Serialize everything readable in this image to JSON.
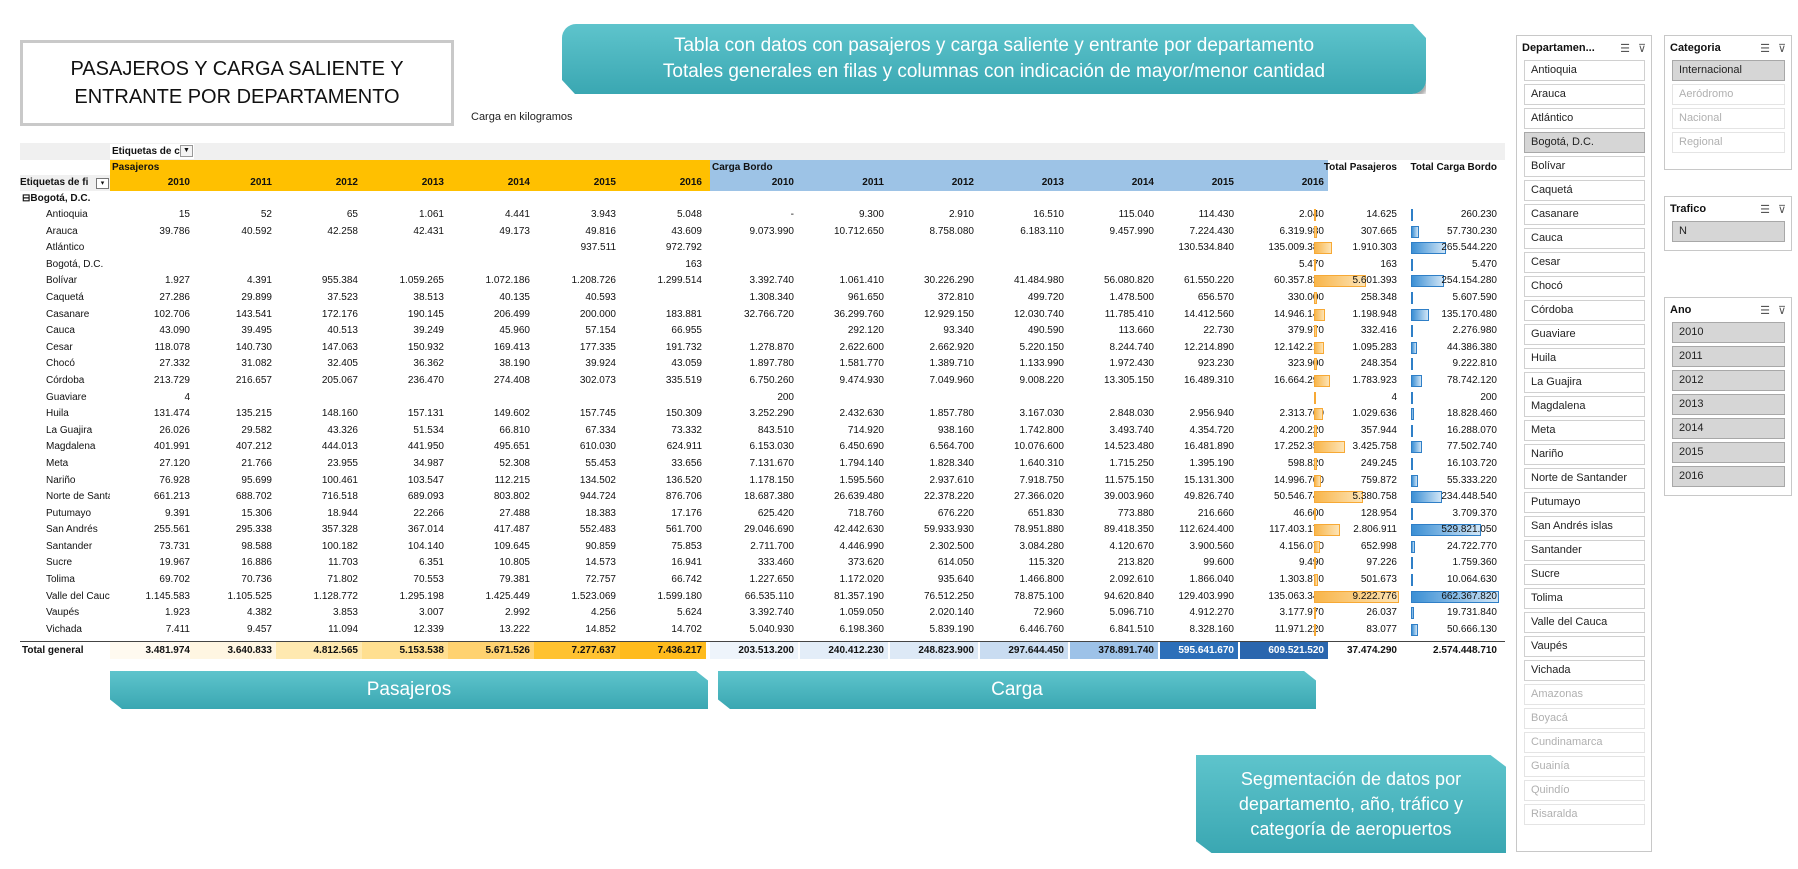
{
  "title": "PASAJEROS Y CARGA SALIENTE Y ENTRANTE POR DEPARTAMENTO",
  "subtitle": "Carga en kilogramos",
  "banners": {
    "top_line1": "Tabla con datos con pasajeros y carga saliente y entrante por departamento",
    "top_line2": "Totales generales en filas y columnas con indicación de mayor/menor cantidad",
    "pasajeros": "Pasajeros",
    "carga": "Carga",
    "segmentacion": "Segmentación de datos por departamento, año, tráfico y categoría de aeropuertos"
  },
  "pivot": {
    "col_labels_caption": "Etiquetas de c",
    "row_labels_caption": "Etiquetas de fi",
    "group_pasajeros": "Pasajeros",
    "group_carga": "Carga Bordo",
    "total_pasajeros_header": "Total Pasajeros",
    "total_carga_header": "Total Carga Bordo",
    "years": [
      "2010",
      "2011",
      "2012",
      "2013",
      "2014",
      "2015",
      "2016"
    ],
    "origin_group": "Bogotá, D.C.",
    "rows": [
      {
        "name": "Antioquia",
        "p": [
          "15",
          "52",
          "65",
          "1.061",
          "4.441",
          "3.943",
          "5.048"
        ],
        "c": [
          "-",
          "9.300",
          "2.910",
          "16.510",
          "115.040",
          "114.430",
          "2.040"
        ],
        "tp": "14.625",
        "tc": "260.230",
        "tp_frac": 0,
        "tc_frac": 0
      },
      {
        "name": "Arauca",
        "p": [
          "39.786",
          "40.592",
          "42.258",
          "42.431",
          "49.173",
          "49.816",
          "43.609"
        ],
        "c": [
          "9.073.990",
          "10.712.650",
          "8.758.080",
          "6.183.110",
          "9.457.990",
          "7.224.430",
          "6.319.980"
        ],
        "tp": "307.665",
        "tc": "57.730.230",
        "tp_frac": 0.03,
        "tc_frac": 0.09
      },
      {
        "name": "Atlántico",
        "p": [
          "",
          "",
          "",
          "",
          "",
          "937.511",
          "972.792"
        ],
        "c": [
          "",
          "",
          "",
          "",
          "",
          "130.534.840",
          "135.009.380"
        ],
        "tp": "1.910.303",
        "tc": "265.544.220",
        "tp_frac": 0.21,
        "tc_frac": 0.4
      },
      {
        "name": "Bogotá, D.C.",
        "p": [
          "",
          "",
          "",
          "",
          "",
          "",
          "163"
        ],
        "c": [
          "",
          "",
          "",
          "",
          "",
          "",
          "5.470"
        ],
        "tp": "163",
        "tc": "5.470",
        "tp_frac": 0,
        "tc_frac": 0
      },
      {
        "name": "Bolívar",
        "p": [
          "1.927",
          "4.391",
          "955.384",
          "1.059.265",
          "1.072.186",
          "1.208.726",
          "1.299.514"
        ],
        "c": [
          "3.392.740",
          "1.061.410",
          "30.226.290",
          "41.484.980",
          "56.080.820",
          "61.550.220",
          "60.357.820"
        ],
        "tp": "5.601.393",
        "tc": "254.154.280",
        "tp_frac": 0.61,
        "tc_frac": 0.38
      },
      {
        "name": "Caquetá",
        "p": [
          "27.286",
          "29.899",
          "37.523",
          "38.513",
          "40.135",
          "40.593",
          ""
        ],
        "c": [
          "1.308.340",
          "961.650",
          "372.810",
          "499.720",
          "1.478.500",
          "656.570",
          "330.000"
        ],
        "tp": "258.348",
        "tc": "5.607.590",
        "tp_frac": 0.03,
        "tc_frac": 0.01
      },
      {
        "name": "Casanare",
        "p": [
          "102.706",
          "143.541",
          "172.176",
          "190.145",
          "206.499",
          "200.000",
          "183.881"
        ],
        "c": [
          "32.766.720",
          "36.299.760",
          "12.929.150",
          "12.030.740",
          "11.785.410",
          "14.412.560",
          "14.946.140"
        ],
        "tp": "1.198.948",
        "tc": "135.170.480",
        "tp_frac": 0.13,
        "tc_frac": 0.2
      },
      {
        "name": "Cauca",
        "p": [
          "43.090",
          "39.495",
          "40.513",
          "39.249",
          "45.960",
          "57.154",
          "66.955"
        ],
        "c": [
          "",
          "292.120",
          "93.340",
          "490.590",
          "113.660",
          "22.730",
          "379.970"
        ],
        "tp": "332.416",
        "tc": "2.276.980",
        "tp_frac": 0.04,
        "tc_frac": 0
      },
      {
        "name": "Cesar",
        "p": [
          "118.078",
          "140.730",
          "147.063",
          "150.932",
          "169.413",
          "177.335",
          "191.732"
        ],
        "c": [
          "1.278.870",
          "2.622.600",
          "2.662.920",
          "5.220.150",
          "8.244.740",
          "12.214.890",
          "12.142.210"
        ],
        "tp": "1.095.283",
        "tc": "44.386.380",
        "tp_frac": 0.12,
        "tc_frac": 0.07
      },
      {
        "name": "Chocó",
        "p": [
          "27.332",
          "31.082",
          "32.405",
          "36.362",
          "38.190",
          "39.924",
          "43.059"
        ],
        "c": [
          "1.897.780",
          "1.581.770",
          "1.389.710",
          "1.133.990",
          "1.972.430",
          "923.230",
          "323.900"
        ],
        "tp": "248.354",
        "tc": "9.222.810",
        "tp_frac": 0.03,
        "tc_frac": 0.01
      },
      {
        "name": "Córdoba",
        "p": [
          "213.729",
          "216.657",
          "205.067",
          "236.470",
          "274.408",
          "302.073",
          "335.519"
        ],
        "c": [
          "6.750.260",
          "9.474.930",
          "7.049.960",
          "9.008.220",
          "13.305.150",
          "16.489.310",
          "16.664.290"
        ],
        "tp": "1.783.923",
        "tc": "78.742.120",
        "tp_frac": 0.19,
        "tc_frac": 0.12
      },
      {
        "name": "Guaviare",
        "p": [
          "4",
          "",
          "",
          "",
          "",
          "",
          ""
        ],
        "c": [
          "200",
          "",
          "",
          "",
          "",
          "",
          ""
        ],
        "tp": "4",
        "tc": "200",
        "tp_frac": 0,
        "tc_frac": 0
      },
      {
        "name": "Huila",
        "p": [
          "131.474",
          "135.215",
          "148.160",
          "157.131",
          "149.602",
          "157.745",
          "150.309"
        ],
        "c": [
          "3.252.290",
          "2.432.630",
          "1.857.780",
          "3.167.030",
          "2.848.030",
          "2.956.940",
          "2.313.760"
        ],
        "tp": "1.029.636",
        "tc": "18.828.460",
        "tp_frac": 0.11,
        "tc_frac": 0.03
      },
      {
        "name": "La Guajira",
        "p": [
          "26.026",
          "29.582",
          "43.326",
          "51.534",
          "66.810",
          "67.334",
          "73.332"
        ],
        "c": [
          "843.510",
          "714.920",
          "938.160",
          "1.742.800",
          "3.493.740",
          "4.354.720",
          "4.200.220"
        ],
        "tp": "357.944",
        "tc": "16.288.070",
        "tp_frac": 0.04,
        "tc_frac": 0.02
      },
      {
        "name": "Magdalena",
        "p": [
          "401.991",
          "407.212",
          "444.013",
          "441.950",
          "495.651",
          "610.030",
          "624.911"
        ],
        "c": [
          "6.153.030",
          "6.450.690",
          "6.564.700",
          "10.076.600",
          "14.523.480",
          "16.481.890",
          "17.252.350"
        ],
        "tp": "3.425.758",
        "tc": "77.502.740",
        "tp_frac": 0.37,
        "tc_frac": 0.12
      },
      {
        "name": "Meta",
        "p": [
          "27.120",
          "21.766",
          "23.955",
          "34.987",
          "52.308",
          "55.453",
          "33.656"
        ],
        "c": [
          "7.131.670",
          "1.794.140",
          "1.828.340",
          "1.640.310",
          "1.715.250",
          "1.395.190",
          "598.820"
        ],
        "tp": "249.245",
        "tc": "16.103.720",
        "tp_frac": 0.03,
        "tc_frac": 0.02
      },
      {
        "name": "Nariño",
        "p": [
          "76.928",
          "95.699",
          "100.461",
          "103.547",
          "112.215",
          "134.502",
          "136.520"
        ],
        "c": [
          "1.178.150",
          "1.595.560",
          "2.937.610",
          "7.918.750",
          "11.575.150",
          "15.131.300",
          "14.996.700"
        ],
        "tp": "759.872",
        "tc": "55.333.220",
        "tp_frac": 0.08,
        "tc_frac": 0.08
      },
      {
        "name": "Norte de Santander",
        "p": [
          "661.213",
          "688.702",
          "716.518",
          "689.093",
          "803.802",
          "944.724",
          "876.706"
        ],
        "c": [
          "18.687.380",
          "26.639.480",
          "22.378.220",
          "27.366.020",
          "39.003.960",
          "49.826.740",
          "50.546.740"
        ],
        "tp": "5.380.758",
        "tc": "234.448.540",
        "tp_frac": 0.58,
        "tc_frac": 0.35
      },
      {
        "name": "Putumayo",
        "p": [
          "9.391",
          "15.306",
          "18.944",
          "22.266",
          "27.488",
          "18.383",
          "17.176"
        ],
        "c": [
          "625.420",
          "718.760",
          "676.220",
          "651.830",
          "773.880",
          "216.660",
          "46.600"
        ],
        "tp": "128.954",
        "tc": "3.709.370",
        "tp_frac": 0.01,
        "tc_frac": 0.01
      },
      {
        "name": "San Andrés",
        "p": [
          "255.561",
          "295.338",
          "357.328",
          "367.014",
          "417.487",
          "552.483",
          "561.700"
        ],
        "c": [
          "29.046.690",
          "42.442.630",
          "59.933.930",
          "78.951.880",
          "89.418.350",
          "112.624.400",
          "117.403.170"
        ],
        "tp": "2.806.911",
        "tc": "529.821.050",
        "tp_frac": 0.3,
        "tc_frac": 0.8
      },
      {
        "name": "Santander",
        "p": [
          "73.731",
          "98.588",
          "100.182",
          "104.140",
          "109.645",
          "90.859",
          "75.853"
        ],
        "c": [
          "2.711.700",
          "4.446.990",
          "2.302.500",
          "3.084.280",
          "4.120.670",
          "3.900.560",
          "4.156.070"
        ],
        "tp": "652.998",
        "tc": "24.722.770",
        "tp_frac": 0.07,
        "tc_frac": 0.04
      },
      {
        "name": "Sucre",
        "p": [
          "19.967",
          "16.886",
          "11.703",
          "6.351",
          "10.805",
          "14.573",
          "16.941"
        ],
        "c": [
          "333.460",
          "373.620",
          "614.050",
          "115.320",
          "213.820",
          "99.600",
          "9.490"
        ],
        "tp": "97.226",
        "tc": "1.759.360",
        "tp_frac": 0.01,
        "tc_frac": 0
      },
      {
        "name": "Tolima",
        "p": [
          "69.702",
          "70.736",
          "71.802",
          "70.553",
          "79.381",
          "72.757",
          "66.742"
        ],
        "c": [
          "1.227.650",
          "1.172.020",
          "935.640",
          "1.466.800",
          "2.092.610",
          "1.866.040",
          "1.303.870"
        ],
        "tp": "501.673",
        "tc": "10.064.630",
        "tp_frac": 0.05,
        "tc_frac": 0.02
      },
      {
        "name": "Valle del Cauca",
        "p": [
          "1.145.583",
          "1.105.525",
          "1.128.772",
          "1.295.198",
          "1.425.449",
          "1.523.069",
          "1.599.180"
        ],
        "c": [
          "66.535.110",
          "81.357.190",
          "76.512.250",
          "78.875.100",
          "94.620.840",
          "129.403.990",
          "135.063.340"
        ],
        "tp": "9.222.776",
        "tc": "662.367.820",
        "tp_frac": 1,
        "tc_frac": 1
      },
      {
        "name": "Vaupés",
        "p": [
          "1.923",
          "4.382",
          "3.853",
          "3.007",
          "2.992",
          "4.256",
          "5.624"
        ],
        "c": [
          "3.392.740",
          "1.059.050",
          "2.020.140",
          "72.960",
          "5.096.710",
          "4.912.270",
          "3.177.970"
        ],
        "tp": "26.037",
        "tc": "19.731.840",
        "tp_frac": 0,
        "tc_frac": 0.03
      },
      {
        "name": "Vichada",
        "p": [
          "7.411",
          "9.457",
          "11.094",
          "12.339",
          "13.222",
          "14.852",
          "14.702"
        ],
        "c": [
          "5.040.930",
          "6.198.360",
          "5.839.190",
          "6.446.760",
          "6.841.510",
          "8.328.160",
          "11.971.220"
        ],
        "tp": "83.077",
        "tc": "50.666.130",
        "tp_frac": 0.01,
        "tc_frac": 0.08
      }
    ],
    "total": {
      "label": "Total general",
      "p": [
        "3.481.974",
        "3.640.833",
        "4.812.565",
        "5.153.538",
        "5.671.526",
        "7.277.637",
        "7.436.217"
      ],
      "c": [
        "203.513.200",
        "240.412.230",
        "248.823.900",
        "297.644.450",
        "378.891.740",
        "595.641.670",
        "609.521.520"
      ],
      "tp": "37.474.290",
      "tc": "2.574.448.710"
    },
    "total_colors_p": [
      "#fffaf0",
      "#fff6e2",
      "#ffe9b0",
      "#ffdf90",
      "#ffd270",
      "#ffc230",
      "#ffbb1c"
    ],
    "total_colors_c": [
      "#eef4fb",
      "#e3edf8",
      "#dde9f6",
      "#c9dcf1",
      "#9dc2e8",
      "#2c6fb9",
      "#2a66ae"
    ],
    "header_colors": {
      "pasajeros": "#ffc000",
      "carga": "#9dc3e6"
    }
  },
  "slicers": {
    "departamento": {
      "title": "Departamen...",
      "items": [
        {
          "label": "Antioquia",
          "state": "normal"
        },
        {
          "label": "Arauca",
          "state": "normal"
        },
        {
          "label": "Atlántico",
          "state": "normal"
        },
        {
          "label": "Bogotá, D.C.",
          "state": "selected"
        },
        {
          "label": "Bolívar",
          "state": "normal"
        },
        {
          "label": "Caquetá",
          "state": "normal"
        },
        {
          "label": "Casanare",
          "state": "normal"
        },
        {
          "label": "Cauca",
          "state": "normal"
        },
        {
          "label": "Cesar",
          "state": "normal"
        },
        {
          "label": "Chocó",
          "state": "normal"
        },
        {
          "label": "Córdoba",
          "state": "normal"
        },
        {
          "label": "Guaviare",
          "state": "normal"
        },
        {
          "label": "Huila",
          "state": "normal"
        },
        {
          "label": "La Guajira",
          "state": "normal"
        },
        {
          "label": "Magdalena",
          "state": "normal"
        },
        {
          "label": "Meta",
          "state": "normal"
        },
        {
          "label": "Nariño",
          "state": "normal"
        },
        {
          "label": "Norte de Santander",
          "state": "normal"
        },
        {
          "label": "Putumayo",
          "state": "normal"
        },
        {
          "label": "San Andrés islas",
          "state": "normal"
        },
        {
          "label": "Santander",
          "state": "normal"
        },
        {
          "label": "Sucre",
          "state": "normal"
        },
        {
          "label": "Tolima",
          "state": "normal"
        },
        {
          "label": "Valle del Cauca",
          "state": "normal"
        },
        {
          "label": "Vaupés",
          "state": "normal"
        },
        {
          "label": "Vichada",
          "state": "normal"
        },
        {
          "label": "Amazonas",
          "state": "disabled"
        },
        {
          "label": "Boyacá",
          "state": "disabled"
        },
        {
          "label": "Cundinamarca",
          "state": "disabled"
        },
        {
          "label": "Guainía",
          "state": "disabled"
        },
        {
          "label": "Quindío",
          "state": "disabled"
        },
        {
          "label": "Risaralda",
          "state": "disabled"
        }
      ]
    },
    "categoria": {
      "title": "Categoria",
      "items": [
        {
          "label": "Internacional",
          "state": "selected"
        },
        {
          "label": "Aeródromo",
          "state": "disabled"
        },
        {
          "label": "Nacional",
          "state": "disabled"
        },
        {
          "label": "Regional",
          "state": "disabled"
        }
      ]
    },
    "trafico": {
      "title": "Trafico",
      "items": [
        {
          "label": "N",
          "state": "selected"
        }
      ]
    },
    "ano": {
      "title": "Ano",
      "items": [
        {
          "label": "2010",
          "state": "selected"
        },
        {
          "label": "2011",
          "state": "selected"
        },
        {
          "label": "2012",
          "state": "selected"
        },
        {
          "label": "2013",
          "state": "selected"
        },
        {
          "label": "2014",
          "state": "selected"
        },
        {
          "label": "2015",
          "state": "selected"
        },
        {
          "label": "2016",
          "state": "selected"
        }
      ]
    },
    "icons": [
      "multiselect-icon",
      "clear-filter-icon"
    ]
  }
}
